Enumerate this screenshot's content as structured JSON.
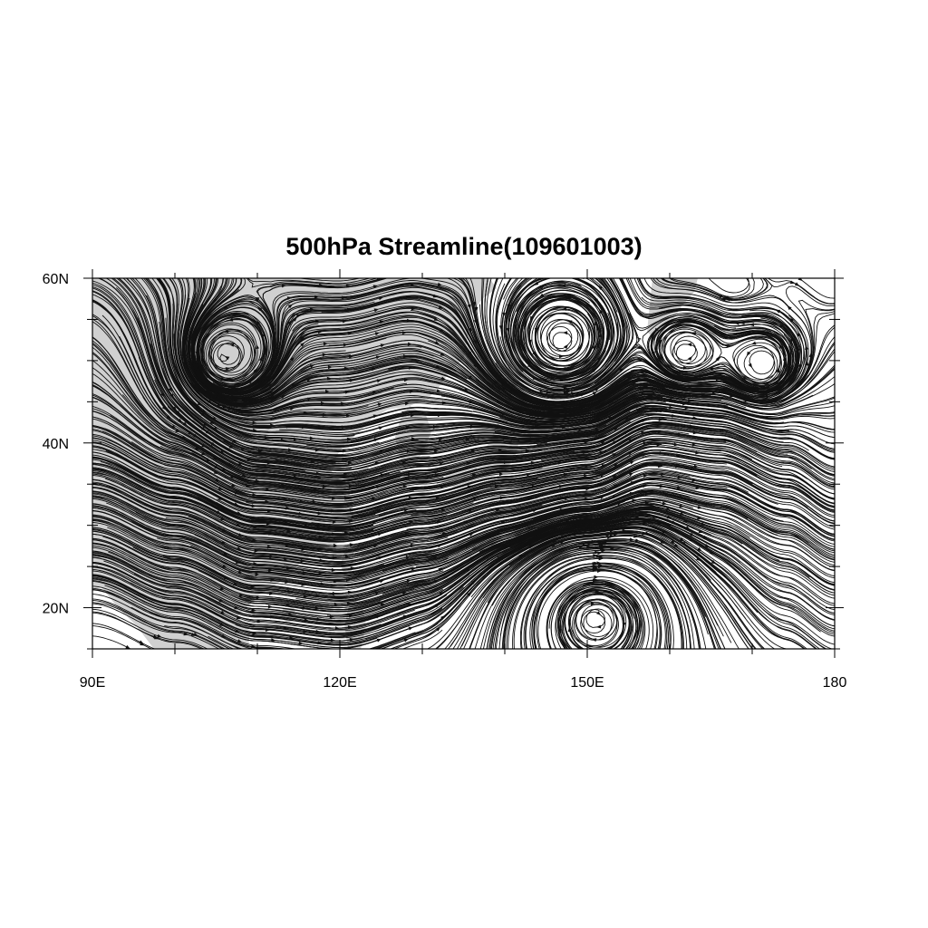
{
  "title": "500hPa Streamline(109601003)",
  "map": {
    "projection": "cylindrical-equidistant",
    "lon_range": [
      90,
      180
    ],
    "lat_range": [
      15,
      60
    ],
    "land_color": "#d0d0d0",
    "ocean_color": "#ffffff",
    "line_color": "#111111"
  },
  "axes": {
    "x_ticks": [
      {
        "value": 90,
        "label": "90E"
      },
      {
        "value": 120,
        "label": "120E"
      },
      {
        "value": 150,
        "label": "150E"
      },
      {
        "value": 180,
        "label": "180"
      }
    ],
    "y_ticks": [
      {
        "value": 20,
        "label": "20N"
      },
      {
        "value": 40,
        "label": "40N"
      },
      {
        "value": 60,
        "label": "60N"
      }
    ],
    "x_minor_step": 10,
    "y_minor_step": 5
  },
  "features": {
    "cyclonic_centers": [
      {
        "lon": 106,
        "lat": 50.5
      },
      {
        "lon": 147,
        "lat": 52.5
      },
      {
        "lon": 162,
        "lat": 51
      },
      {
        "lon": 171,
        "lat": 49.5
      },
      {
        "lon": 151,
        "lat": 18.5
      }
    ],
    "jet_axis": [
      [
        90,
        37.5
      ],
      [
        100,
        34
      ],
      [
        110,
        30.5
      ],
      [
        120,
        29.5
      ],
      [
        130,
        31.5
      ],
      [
        140,
        33.5
      ],
      [
        150,
        35
      ],
      [
        158,
        38.5
      ],
      [
        166,
        37.5
      ],
      [
        174,
        34.5
      ],
      [
        180,
        31.5
      ]
    ]
  }
}
